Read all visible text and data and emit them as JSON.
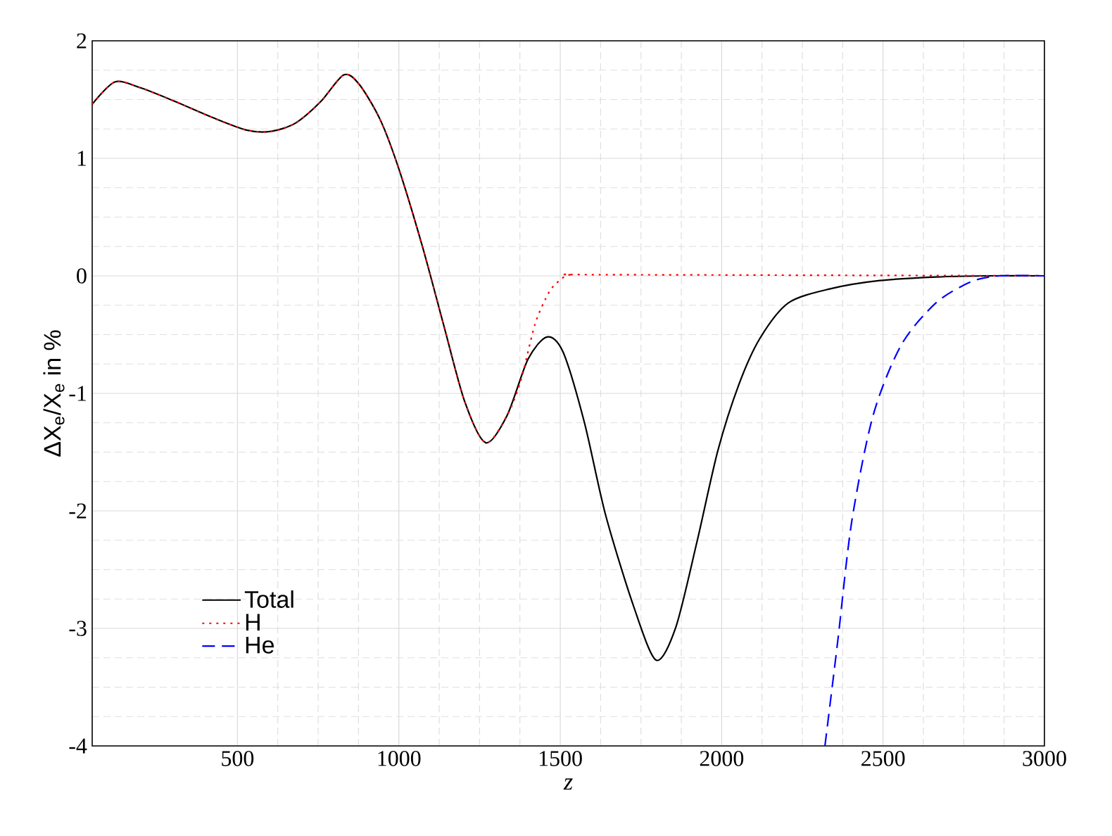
{
  "chart_data": {
    "type": "line",
    "xlabel": "z",
    "ylabel": "ΔX$_{e}$/X$_{e}$ in %",
    "xlim": [
      50,
      3000
    ],
    "ylim": [
      -4,
      2
    ],
    "xticks": [
      500,
      1000,
      1500,
      2000,
      2500,
      3000
    ],
    "yticks": [
      -4,
      -3,
      -2,
      -1,
      0,
      1,
      2
    ],
    "grid": true,
    "legend": "bottom left",
    "marker": "none",
    "series": [
      {
        "name": "Total",
        "color": "#000000",
        "line_style": "solid",
        "x": [
          50,
          120,
          200,
          310,
          420,
          528,
          605,
          680,
          757,
          829,
          877,
          942,
          1000,
          1073,
          1138,
          1204,
          1269,
          1335,
          1400,
          1459,
          1509,
          1575,
          1640,
          1727,
          1797,
          1858,
          1923,
          1988,
          2054,
          2119,
          2207,
          2337,
          2490,
          2664,
          2817,
          3000
        ],
        "values": [
          1.46,
          1.65,
          1.6,
          1.48,
          1.35,
          1.24,
          1.23,
          1.3,
          1.48,
          1.71,
          1.63,
          1.33,
          0.91,
          0.25,
          -0.41,
          -1.07,
          -1.42,
          -1.19,
          -0.71,
          -0.52,
          -0.65,
          -1.25,
          -2.03,
          -2.81,
          -3.27,
          -2.99,
          -2.27,
          -1.49,
          -0.92,
          -0.53,
          -0.23,
          -0.11,
          -0.04,
          -0.01,
          0,
          0
        ]
      },
      {
        "name": "H",
        "color": "#ff0000",
        "line_style": "dotted",
        "x": [
          50,
          120,
          200,
          310,
          420,
          528,
          605,
          680,
          757,
          829,
          877,
          942,
          1000,
          1073,
          1138,
          1204,
          1269,
          1335,
          1378,
          1422,
          1465,
          1498,
          1531,
          1618,
          3000
        ],
        "values": [
          1.46,
          1.65,
          1.6,
          1.48,
          1.35,
          1.24,
          1.23,
          1.3,
          1.48,
          1.71,
          1.63,
          1.33,
          0.91,
          0.25,
          -0.41,
          -1.07,
          -1.42,
          -1.19,
          -0.89,
          -0.41,
          -0.14,
          -0.04,
          0.01,
          0.01,
          0
        ]
      },
      {
        "name": "He",
        "color": "#0000ff",
        "line_style": "dashed",
        "x": [
          2320,
          2360,
          2403,
          2469,
          2556,
          2664,
          2773,
          2860,
          3000
        ],
        "values": [
          -4,
          -3.1,
          -2.09,
          -1.19,
          -0.59,
          -0.23,
          -0.05,
          0,
          0
        ]
      }
    ]
  }
}
